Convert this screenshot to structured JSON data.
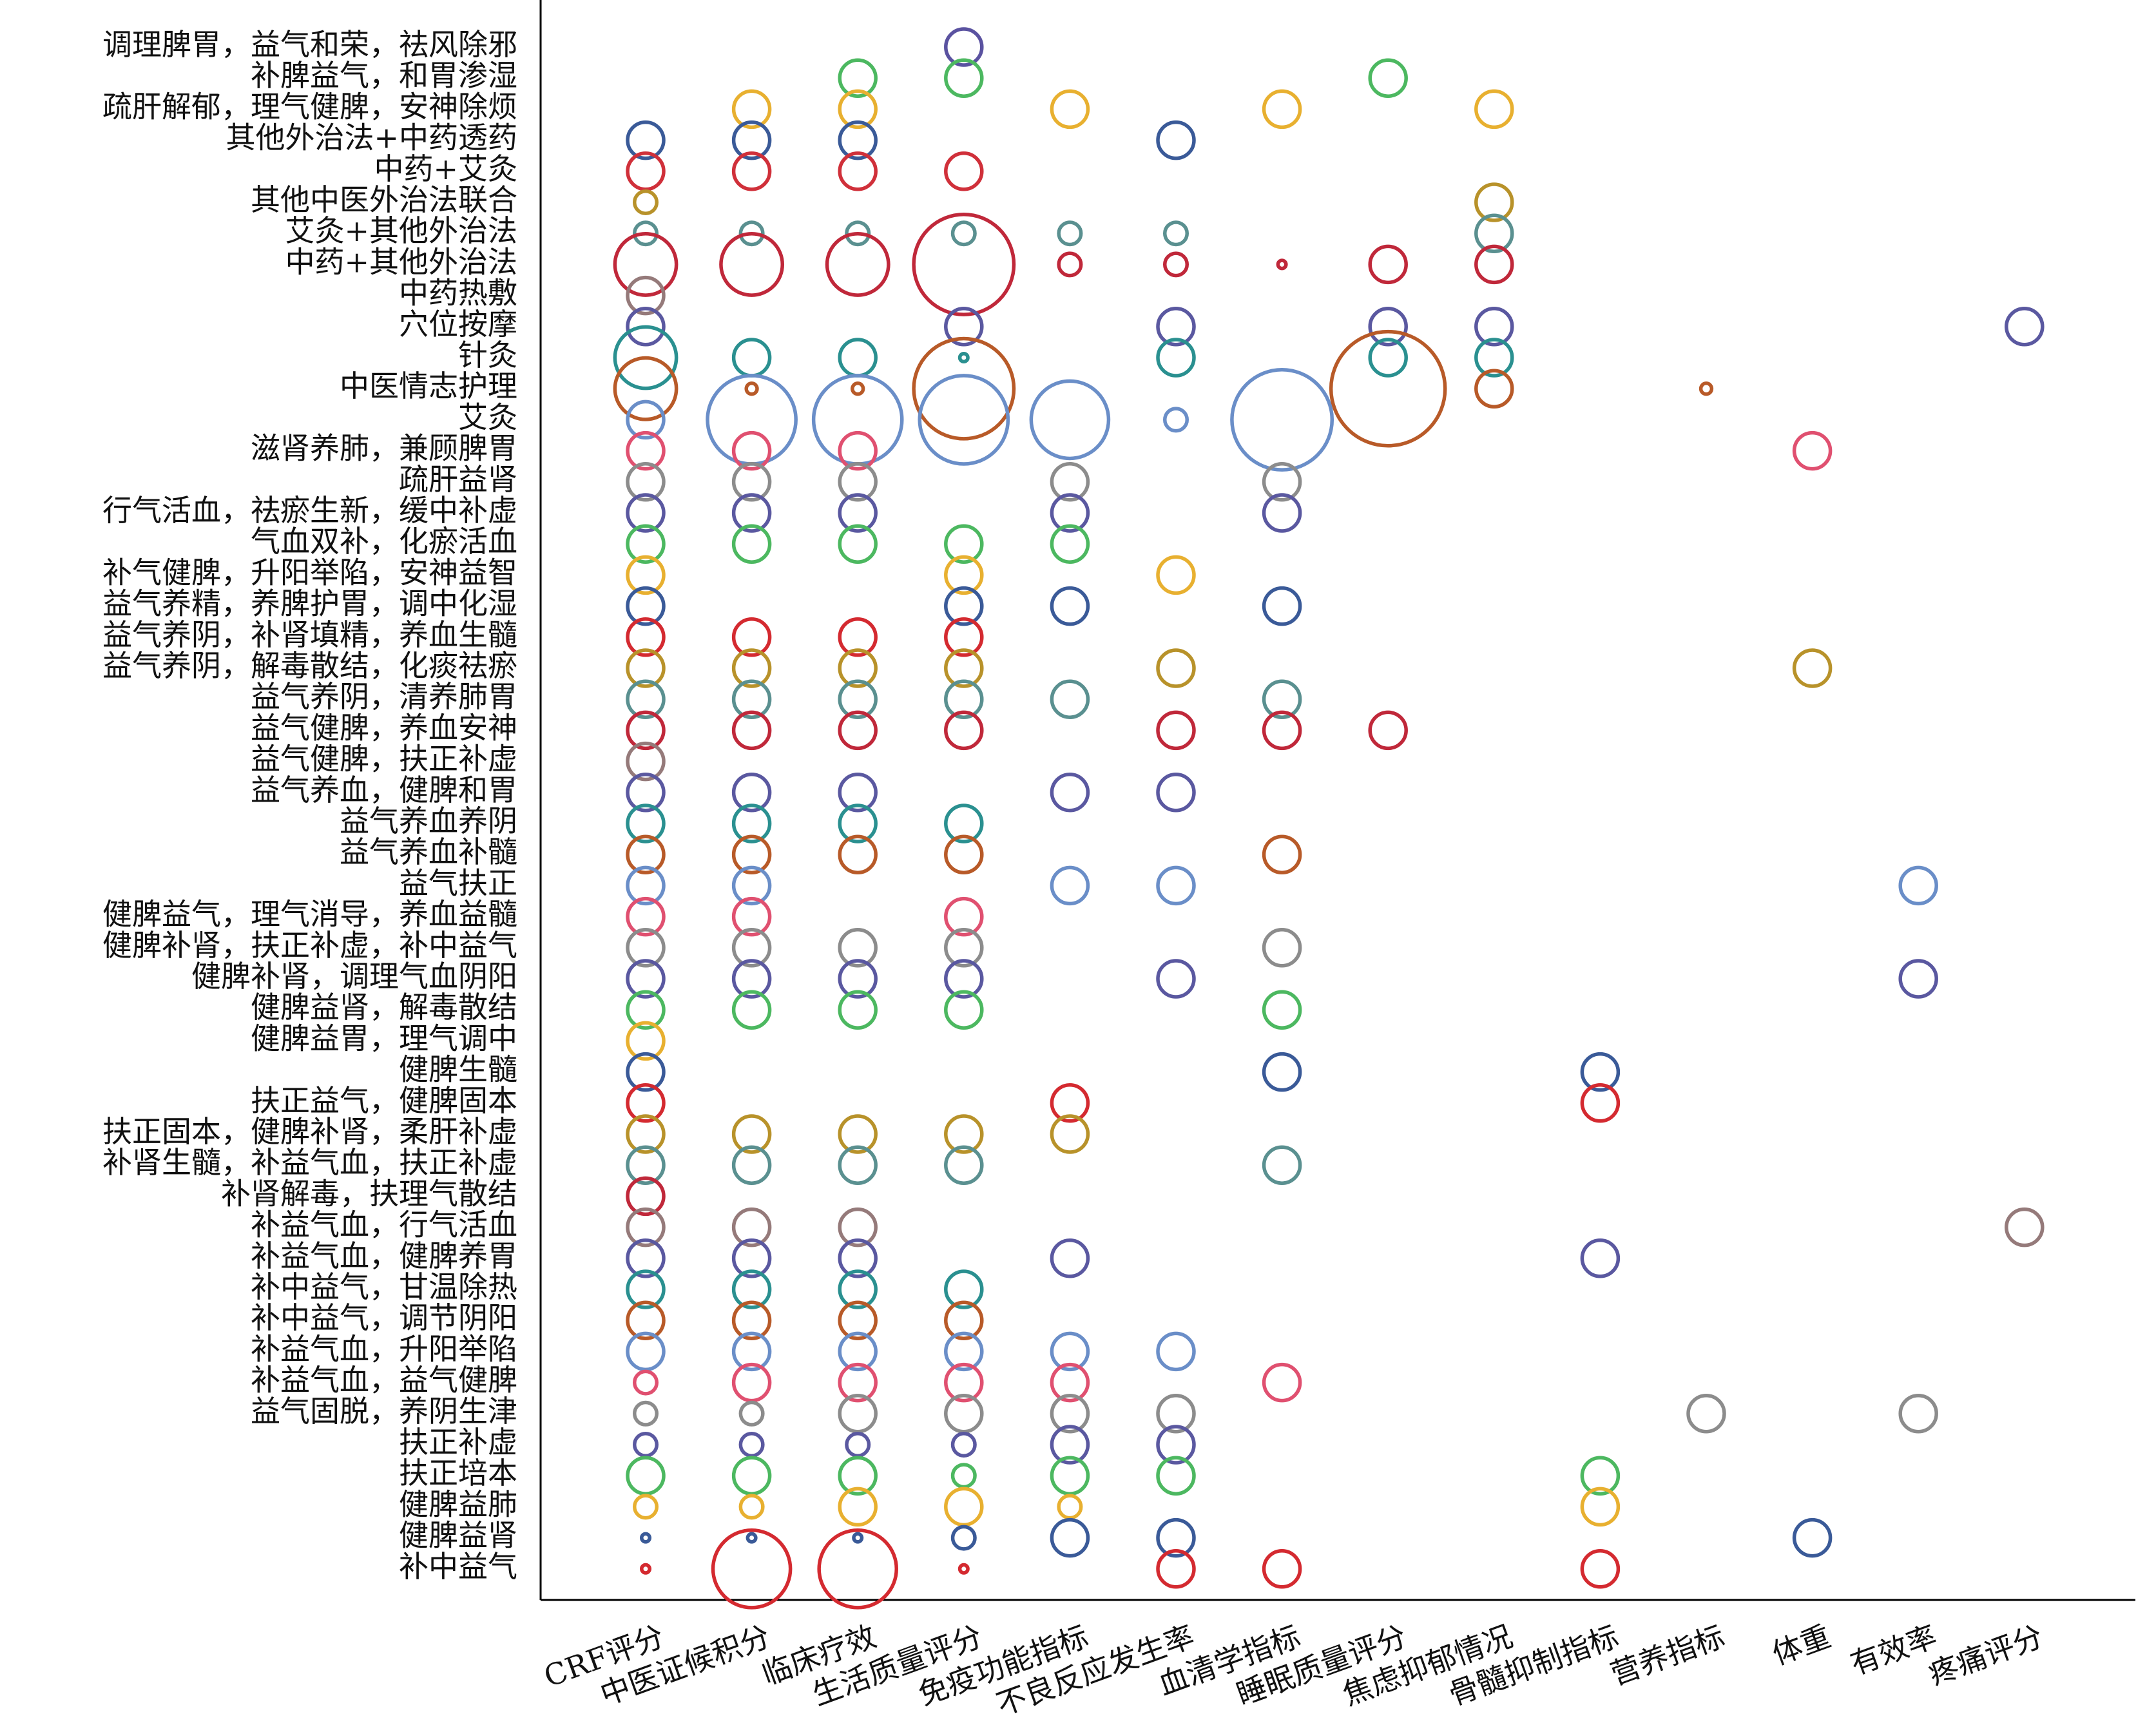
{
  "chart_data": {
    "type": "bubble",
    "x_categories": [
      "CRF评分",
      "中医证候积分",
      "临床疗效",
      "生活质量评分",
      "免疫功能指标",
      "不良反应发生率",
      "血清学指标",
      "睡眠质量评分",
      "焦虑抑郁情况",
      "骨髓抑制指标",
      "营养指标",
      "体重",
      "有效率",
      "疼痛评分"
    ],
    "series": [
      {
        "name": "调理脾胃，益气和荣，祛风除邪",
        "color": "#5a52a0",
        "values": [
          null,
          null,
          null,
          1,
          null,
          null,
          null,
          null,
          null,
          null,
          null,
          null,
          null,
          null
        ]
      },
      {
        "name": "补脾益气，和胃渗湿",
        "color": "#4cb860",
        "values": [
          null,
          null,
          1,
          1,
          null,
          null,
          null,
          1,
          null,
          null,
          null,
          null,
          null,
          null
        ]
      },
      {
        "name": "疏肝解郁，理气健脾，安神除烦",
        "color": "#e8b030",
        "values": [
          null,
          1,
          1,
          null,
          1,
          null,
          1,
          null,
          1,
          null,
          null,
          null,
          null,
          null
        ]
      },
      {
        "name": "其他外治法+中药透药",
        "color": "#3a5a98",
        "values": [
          1,
          1,
          1,
          null,
          null,
          1,
          null,
          null,
          null,
          null,
          null,
          null,
          null,
          null
        ]
      },
      {
        "name": "中药+艾灸",
        "color": "#d0303a",
        "values": [
          1,
          1,
          1,
          1,
          null,
          null,
          null,
          null,
          null,
          null,
          null,
          null,
          null,
          null
        ]
      },
      {
        "name": "其他中医外治法联合",
        "color": "#b8922a",
        "values": [
          0.38,
          null,
          null,
          null,
          null,
          null,
          null,
          null,
          1,
          null,
          null,
          null,
          null,
          null
        ]
      },
      {
        "name": "艾灸+其他外治法",
        "color": "#5a9090",
        "values": [
          0.38,
          0.38,
          0.38,
          0.38,
          0.38,
          0.38,
          null,
          null,
          1,
          null,
          null,
          null,
          null,
          null
        ]
      },
      {
        "name": "中药+其他外治法",
        "color": "#c0283a",
        "values": [
          2.9,
          2.9,
          2.9,
          7.7,
          0.38,
          0.38,
          0.05,
          1,
          1,
          null,
          null,
          null,
          null,
          null
        ]
      },
      {
        "name": "中药热敷",
        "color": "#957a7a",
        "values": [
          1,
          null,
          null,
          null,
          null,
          null,
          null,
          null,
          null,
          null,
          null,
          null,
          null,
          null
        ]
      },
      {
        "name": "穴位按摩",
        "color": "#5a58a0",
        "values": [
          1,
          null,
          null,
          1,
          null,
          1,
          null,
          1,
          1,
          null,
          null,
          null,
          null,
          1
        ]
      },
      {
        "name": "针灸",
        "color": "#2a9090",
        "values": [
          2.9,
          1,
          1,
          0.05,
          null,
          1,
          null,
          1,
          1,
          null,
          null,
          null,
          null,
          null
        ]
      },
      {
        "name": "中医情志护理",
        "color": "#b85a28",
        "values": [
          2.9,
          0.09,
          0.09,
          7.7,
          null,
          null,
          null,
          10,
          1,
          null,
          0.09,
          null,
          null,
          null
        ]
      },
      {
        "name": "艾灸",
        "color": "#6a8ec8",
        "values": [
          1,
          6,
          6,
          6,
          4.6,
          0.38,
          7.7,
          null,
          null,
          null,
          null,
          null,
          null,
          null
        ]
      },
      {
        "name": "滋肾养肺，兼顾脾胃",
        "color": "#e05070",
        "values": [
          1,
          1,
          1,
          null,
          null,
          null,
          null,
          null,
          null,
          null,
          null,
          1,
          null,
          null
        ]
      },
      {
        "name": "疏肝益肾",
        "color": "#8c8c8c",
        "values": [
          1,
          1,
          1,
          null,
          1,
          null,
          1,
          null,
          null,
          null,
          null,
          null,
          null,
          null
        ]
      },
      {
        "name": "行气活血，祛瘀生新，缓中补虚",
        "color": "#5a58a0",
        "values": [
          1,
          1,
          1,
          null,
          1,
          null,
          1,
          null,
          null,
          null,
          null,
          null,
          null,
          null
        ]
      },
      {
        "name": "气血双补，化瘀活血",
        "color": "#4cb860",
        "values": [
          1,
          1,
          1,
          1,
          1,
          null,
          null,
          null,
          null,
          null,
          null,
          null,
          null,
          null
        ]
      },
      {
        "name": "补气健脾，升阳举陷，安神益智",
        "color": "#e8b030",
        "values": [
          1,
          null,
          null,
          1,
          null,
          1,
          null,
          null,
          null,
          null,
          null,
          null,
          null,
          null
        ]
      },
      {
        "name": "益气养精，养脾护胃，调中化湿",
        "color": "#3a5a98",
        "values": [
          1,
          null,
          null,
          1,
          1,
          null,
          1,
          null,
          null,
          null,
          null,
          null,
          null,
          null
        ]
      },
      {
        "name": "益气养阴，补肾填精，养血生髓",
        "color": "#d42a30",
        "values": [
          1,
          1,
          1,
          1,
          null,
          null,
          null,
          null,
          null,
          null,
          null,
          null,
          null,
          null
        ]
      },
      {
        "name": "益气养阴，解毒散结，化痰祛瘀",
        "color": "#b8922a",
        "values": [
          1,
          1,
          1,
          1,
          null,
          1,
          null,
          null,
          null,
          null,
          null,
          1,
          null,
          null
        ]
      },
      {
        "name": "益气养阴，清养肺胃",
        "color": "#5a9090",
        "values": [
          1,
          1,
          1,
          1,
          1,
          null,
          1,
          null,
          null,
          null,
          null,
          null,
          null,
          null
        ]
      },
      {
        "name": "益气健脾，养血安神",
        "color": "#c0283a",
        "values": [
          1,
          1,
          1,
          1,
          null,
          1,
          1,
          1,
          null,
          null,
          null,
          null,
          null,
          null
        ]
      },
      {
        "name": "益气健脾，扶正补虚",
        "color": "#957a7a",
        "values": [
          1,
          null,
          null,
          null,
          null,
          null,
          null,
          null,
          null,
          null,
          null,
          null,
          null,
          null
        ]
      },
      {
        "name": "益气养血，健脾和胃",
        "color": "#5a58a0",
        "values": [
          1,
          1,
          1,
          null,
          1,
          1,
          null,
          null,
          null,
          null,
          null,
          null,
          null,
          null
        ]
      },
      {
        "name": "益气养血养阴",
        "color": "#2a9090",
        "values": [
          1,
          1,
          1,
          1,
          null,
          null,
          null,
          null,
          null,
          null,
          null,
          null,
          null,
          null
        ]
      },
      {
        "name": "益气养血补髓",
        "color": "#b85a28",
        "values": [
          1,
          1,
          1,
          1,
          null,
          null,
          1,
          null,
          null,
          null,
          null,
          null,
          null,
          null
        ]
      },
      {
        "name": "益气扶正",
        "color": "#6a8ec8",
        "values": [
          1,
          1,
          null,
          null,
          1,
          1,
          null,
          null,
          null,
          null,
          null,
          null,
          1,
          null
        ]
      },
      {
        "name": "健脾益气，理气消导，养血益髓",
        "color": "#e05070",
        "values": [
          1,
          1,
          null,
          1,
          null,
          null,
          null,
          null,
          null,
          null,
          null,
          null,
          null,
          null
        ]
      },
      {
        "name": "健脾补肾，扶正补虚，补中益气",
        "color": "#8c8c8c",
        "values": [
          1,
          1,
          1,
          1,
          null,
          null,
          1,
          null,
          null,
          null,
          null,
          null,
          null,
          null
        ]
      },
      {
        "name": "健脾补肾，调理气血阴阳",
        "color": "#5a58a0",
        "values": [
          1,
          1,
          1,
          1,
          null,
          1,
          null,
          null,
          null,
          null,
          null,
          null,
          1,
          null
        ]
      },
      {
        "name": "健脾益肾，解毒散结",
        "color": "#4cb860",
        "values": [
          1,
          1,
          1,
          1,
          null,
          null,
          1,
          null,
          null,
          null,
          null,
          null,
          null,
          null
        ]
      },
      {
        "name": "健脾益胃，理气调中",
        "color": "#e8b030",
        "values": [
          1,
          null,
          null,
          null,
          null,
          null,
          null,
          null,
          null,
          null,
          null,
          null,
          null,
          null
        ]
      },
      {
        "name": "健脾生髓",
        "color": "#3a5a98",
        "values": [
          1,
          null,
          null,
          null,
          null,
          null,
          1,
          null,
          null,
          1,
          null,
          null,
          null,
          null
        ]
      },
      {
        "name": "扶正益气，健脾固本",
        "color": "#d42a30",
        "values": [
          1,
          null,
          null,
          null,
          1,
          null,
          null,
          null,
          null,
          1,
          null,
          null,
          null,
          null
        ]
      },
      {
        "name": "扶正固本，健脾补肾，柔肝补虚",
        "color": "#b8922a",
        "values": [
          1,
          1,
          1,
          1,
          1,
          null,
          null,
          null,
          null,
          null,
          null,
          null,
          null,
          null
        ]
      },
      {
        "name": "补肾生髓，补益气血，扶正补虚",
        "color": "#5a9090",
        "values": [
          1,
          1,
          1,
          1,
          null,
          null,
          1,
          null,
          null,
          null,
          null,
          null,
          null,
          null
        ]
      },
      {
        "name": "补肾解毒，扶理气散结",
        "color": "#c0283a",
        "values": [
          1,
          null,
          null,
          null,
          null,
          null,
          null,
          null,
          null,
          null,
          null,
          null,
          null,
          null
        ]
      },
      {
        "name": "补益气血，行气活血",
        "color": "#957a7a",
        "values": [
          1,
          1,
          1,
          null,
          null,
          null,
          null,
          null,
          null,
          null,
          null,
          null,
          null,
          1
        ]
      },
      {
        "name": "补益气血，健脾养胃",
        "color": "#5a58a0",
        "values": [
          1,
          1,
          1,
          null,
          1,
          null,
          null,
          null,
          null,
          1,
          null,
          null,
          null,
          null
        ]
      },
      {
        "name": "补中益气，甘温除热",
        "color": "#2a9090",
        "values": [
          1,
          1,
          1,
          1,
          null,
          null,
          null,
          null,
          null,
          null,
          null,
          null,
          null,
          null
        ]
      },
      {
        "name": "补中益气，调节阴阳",
        "color": "#b85a28",
        "values": [
          1,
          1,
          1,
          1,
          null,
          null,
          null,
          null,
          null,
          null,
          null,
          null,
          null,
          null
        ]
      },
      {
        "name": "补益气血，升阳举陷",
        "color": "#6a8ec8",
        "values": [
          1,
          1,
          1,
          1,
          1,
          1,
          null,
          null,
          null,
          null,
          null,
          null,
          null,
          null
        ]
      },
      {
        "name": "补益气血，益气健脾",
        "color": "#e05070",
        "values": [
          0.38,
          1,
          1,
          1,
          1,
          null,
          1,
          null,
          null,
          null,
          null,
          null,
          null,
          null
        ]
      },
      {
        "name": "益气固脱，养阴生津",
        "color": "#8c8c8c",
        "values": [
          0.38,
          0.38,
          1,
          1,
          1,
          1,
          null,
          null,
          null,
          null,
          1,
          null,
          1,
          null
        ]
      },
      {
        "name": "扶正补虚",
        "color": "#5a58a0",
        "values": [
          0.38,
          0.38,
          0.38,
          0.38,
          1,
          1,
          null,
          null,
          null,
          null,
          null,
          null,
          null,
          null
        ]
      },
      {
        "name": "扶正培本",
        "color": "#4cb860",
        "values": [
          1,
          1,
          1,
          0.38,
          1,
          1,
          null,
          null,
          null,
          1,
          null,
          null,
          null,
          null
        ]
      },
      {
        "name": "健脾益肺",
        "color": "#e8b030",
        "values": [
          0.38,
          0.38,
          1,
          1,
          0.38,
          null,
          null,
          null,
          null,
          1,
          null,
          null,
          null,
          null
        ]
      },
      {
        "name": "健脾益肾",
        "color": "#3a5a98",
        "values": [
          0.05,
          0.05,
          0.05,
          0.38,
          1,
          1,
          null,
          null,
          null,
          null,
          null,
          1,
          null,
          null
        ]
      },
      {
        "name": "补中益气",
        "color": "#d42a30",
        "values": [
          0.05,
          4.6,
          4.6,
          0.05,
          null,
          1,
          1,
          null,
          null,
          1,
          null,
          null,
          null,
          null
        ]
      }
    ]
  }
}
